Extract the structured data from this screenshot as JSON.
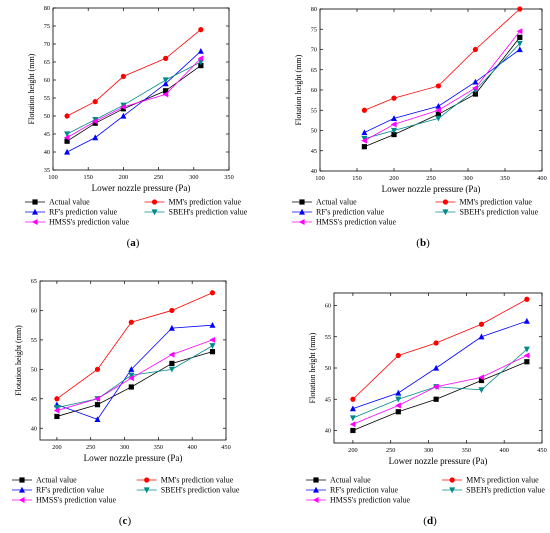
{
  "chart_data": [
    {
      "panel_label": "(a)",
      "type": "line",
      "xlabel": "Lower nozzle pressure (Pa)",
      "ylabel": "Flotation height (mm)",
      "xlim": [
        100,
        350
      ],
      "ylim": [
        35,
        80
      ],
      "xticks": [
        100,
        150,
        200,
        250,
        300,
        350
      ],
      "yticks": [
        35,
        40,
        45,
        50,
        55,
        60,
        65,
        70,
        75,
        80
      ],
      "x": [
        120,
        160,
        200,
        260,
        310
      ],
      "series": [
        {
          "name": "Actual value",
          "color": "#000000",
          "marker": "square",
          "values": [
            43,
            48,
            52,
            57,
            64
          ]
        },
        {
          "name": "MM's prediction value",
          "color": "#ff0000",
          "marker": "circle",
          "values": [
            50,
            54,
            61,
            66,
            74
          ]
        },
        {
          "name": "RF's prediction value",
          "color": "#0000ff",
          "marker": "triangle-up",
          "values": [
            40,
            44,
            50,
            59,
            68
          ]
        },
        {
          "name": "SBEH's prediction value",
          "color": "#008b8b",
          "marker": "triangle-down",
          "values": [
            45,
            49,
            53,
            60,
            65
          ]
        },
        {
          "name": "HMSS's prediction value",
          "color": "#ff00ff",
          "marker": "triangle-left",
          "values": [
            44,
            48.5,
            52.5,
            56,
            66
          ]
        }
      ]
    },
    {
      "panel_label": "(b)",
      "type": "line",
      "xlabel": "Lower nozzle pressure (Pa)",
      "ylabel": "Flotation height (mm)",
      "xlim": [
        100,
        400
      ],
      "ylim": [
        40,
        80
      ],
      "xticks": [
        100,
        150,
        200,
        250,
        300,
        350,
        400
      ],
      "yticks": [
        40,
        45,
        50,
        55,
        60,
        65,
        70,
        75,
        80
      ],
      "x": [
        160,
        200,
        260,
        310,
        370
      ],
      "series": [
        {
          "name": "Actual value",
          "color": "#000000",
          "marker": "square",
          "values": [
            46,
            49,
            54,
            59,
            73
          ]
        },
        {
          "name": "MM's prediction value",
          "color": "#ff0000",
          "marker": "circle",
          "values": [
            55,
            58,
            61,
            70,
            80
          ]
        },
        {
          "name": "RF's prediction value",
          "color": "#0000ff",
          "marker": "triangle-up",
          "values": [
            49.5,
            53,
            56,
            62,
            70
          ]
        },
        {
          "name": "SBEH's prediction value",
          "color": "#008b8b",
          "marker": "triangle-down",
          "values": [
            48,
            50,
            53,
            60,
            71.5
          ]
        },
        {
          "name": "HMSS's prediction value",
          "color": "#ff00ff",
          "marker": "triangle-left",
          "values": [
            47.5,
            51.5,
            55,
            60.5,
            74.5
          ]
        }
      ]
    },
    {
      "panel_label": "(c)",
      "type": "line",
      "xlabel": "Lower nozzle pressure (Pa)",
      "ylabel": "Flotation height (mm)",
      "xlim": [
        175,
        450
      ],
      "ylim": [
        38,
        65
      ],
      "xticks": [
        200,
        250,
        300,
        350,
        400,
        450
      ],
      "yticks": [
        40,
        45,
        50,
        55,
        60,
        65
      ],
      "x": [
        200,
        260,
        310,
        370,
        430
      ],
      "series": [
        {
          "name": "Actual value",
          "color": "#000000",
          "marker": "square",
          "values": [
            42,
            44,
            47,
            51,
            53
          ]
        },
        {
          "name": "MM's prediction value",
          "color": "#ff0000",
          "marker": "circle",
          "values": [
            45,
            50,
            58,
            60,
            63
          ]
        },
        {
          "name": "RF's prediction value",
          "color": "#0000ff",
          "marker": "triangle-up",
          "values": [
            44,
            41.5,
            50,
            57,
            57.5
          ]
        },
        {
          "name": "SBEH's prediction value",
          "color": "#008b8b",
          "marker": "triangle-down",
          "values": [
            43.5,
            45,
            49,
            50,
            54
          ]
        },
        {
          "name": "HMSS's prediction value",
          "color": "#ff00ff",
          "marker": "triangle-left",
          "values": [
            43,
            45,
            48.5,
            52.5,
            55
          ]
        }
      ]
    },
    {
      "panel_label": "(d)",
      "type": "line",
      "xlabel": "Lower nozzle pressure (Pa)",
      "ylabel": "Flotation height (mm)",
      "xlim": [
        175,
        450
      ],
      "ylim": [
        38,
        62
      ],
      "xticks": [
        200,
        250,
        300,
        350,
        400,
        450
      ],
      "yticks": [
        40,
        45,
        50,
        55,
        60
      ],
      "x": [
        200,
        260,
        310,
        370,
        430
      ],
      "series": [
        {
          "name": "Actual value",
          "color": "#000000",
          "marker": "square",
          "values": [
            40,
            43,
            45,
            48,
            51
          ]
        },
        {
          "name": "MM's prediction value",
          "color": "#ff0000",
          "marker": "circle",
          "values": [
            45,
            52,
            54,
            57,
            61
          ]
        },
        {
          "name": "RF's prediction value",
          "color": "#0000ff",
          "marker": "triangle-up",
          "values": [
            43.5,
            46,
            50,
            55,
            57.5
          ]
        },
        {
          "name": "SBEH's prediction value",
          "color": "#008b8b",
          "marker": "triangle-down",
          "values": [
            42,
            45,
            47,
            46.5,
            53
          ]
        },
        {
          "name": "HMSS's prediction value",
          "color": "#ff00ff",
          "marker": "triangle-left",
          "values": [
            41,
            44,
            47,
            48.5,
            52
          ]
        }
      ]
    }
  ]
}
